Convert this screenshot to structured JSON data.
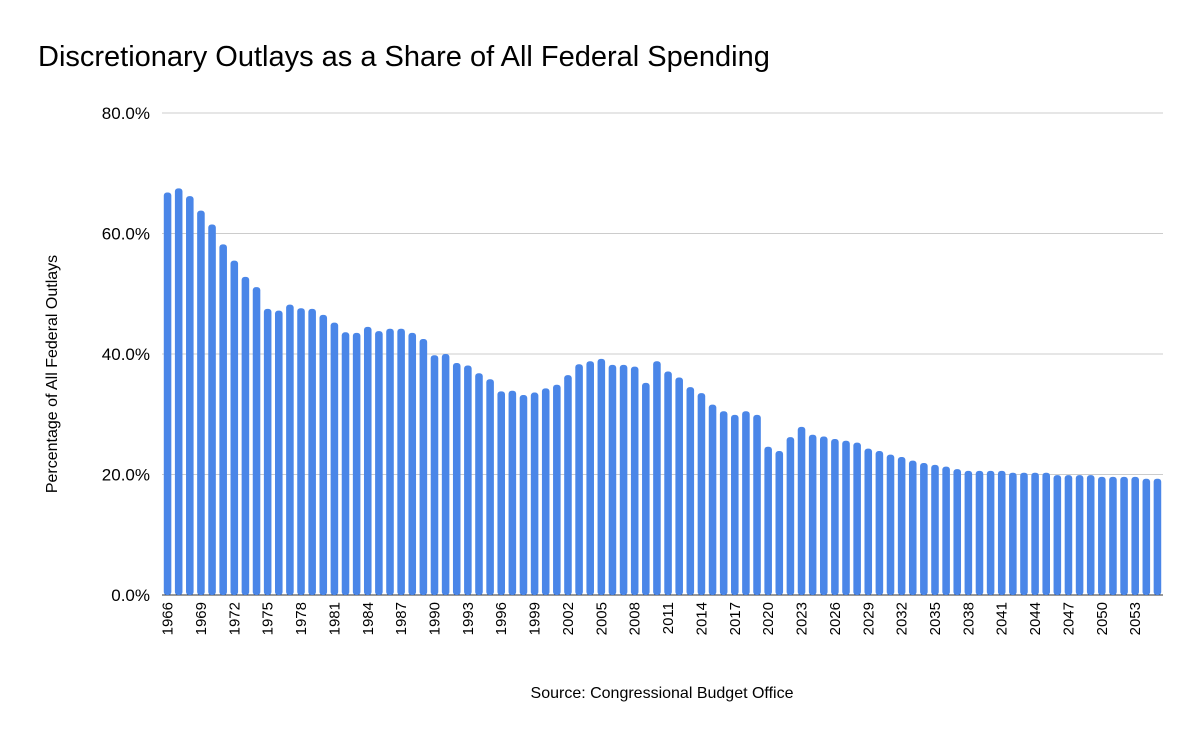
{
  "chart_data": {
    "type": "bar",
    "title": "Discretionary Outlays as a Share of All Federal Spending",
    "ylabel": "Percentage of All Federal Outlays",
    "xlabel": "Source: Congressional Budget Office",
    "ylim": [
      0,
      80
    ],
    "yticks": [
      "0.0%",
      "20.0%",
      "40.0%",
      "60.0%",
      "80.0%"
    ],
    "ytick_values": [
      0,
      20,
      40,
      60,
      80
    ],
    "grid": true,
    "bar_color": "#4a86e8",
    "first_year": 1966,
    "x_label_every": 3,
    "xtick_labels": [
      "1966",
      "1969",
      "1972",
      "1975",
      "1978",
      "1981",
      "1984",
      "1987",
      "1990",
      "1993",
      "1996",
      "1999",
      "2002",
      "2005",
      "2008",
      "2011",
      "2014",
      "2017",
      "2020",
      "2023",
      "2026",
      "2029",
      "2032",
      "2035",
      "2038",
      "2041",
      "2044",
      "2047",
      "2050",
      "2053"
    ],
    "values": [
      66.8,
      67.5,
      66.2,
      63.8,
      61.5,
      58.2,
      55.5,
      52.8,
      51.1,
      47.5,
      47.2,
      48.2,
      47.6,
      47.5,
      46.5,
      45.2,
      43.6,
      43.5,
      44.5,
      43.8,
      44.2,
      44.2,
      43.5,
      42.5,
      39.8,
      40.0,
      38.5,
      38.1,
      36.8,
      35.8,
      33.8,
      33.9,
      33.2,
      33.6,
      34.3,
      34.9,
      36.5,
      38.3,
      38.8,
      39.2,
      38.2,
      38.2,
      37.9,
      35.2,
      38.8,
      37.1,
      36.1,
      34.5,
      33.5,
      31.6,
      30.5,
      29.9,
      30.5,
      29.9,
      24.6,
      23.9,
      26.2,
      27.9,
      26.6,
      26.3,
      25.9,
      25.6,
      25.3,
      24.3,
      23.9,
      23.3,
      22.9,
      22.3,
      21.9,
      21.6,
      21.3,
      20.9,
      20.6,
      20.6,
      20.6,
      20.6,
      20.3,
      20.3,
      20.3,
      20.3,
      19.9,
      19.9,
      19.9,
      19.9,
      19.6,
      19.6,
      19.6,
      19.6,
      19.3,
      19.3
    ]
  }
}
